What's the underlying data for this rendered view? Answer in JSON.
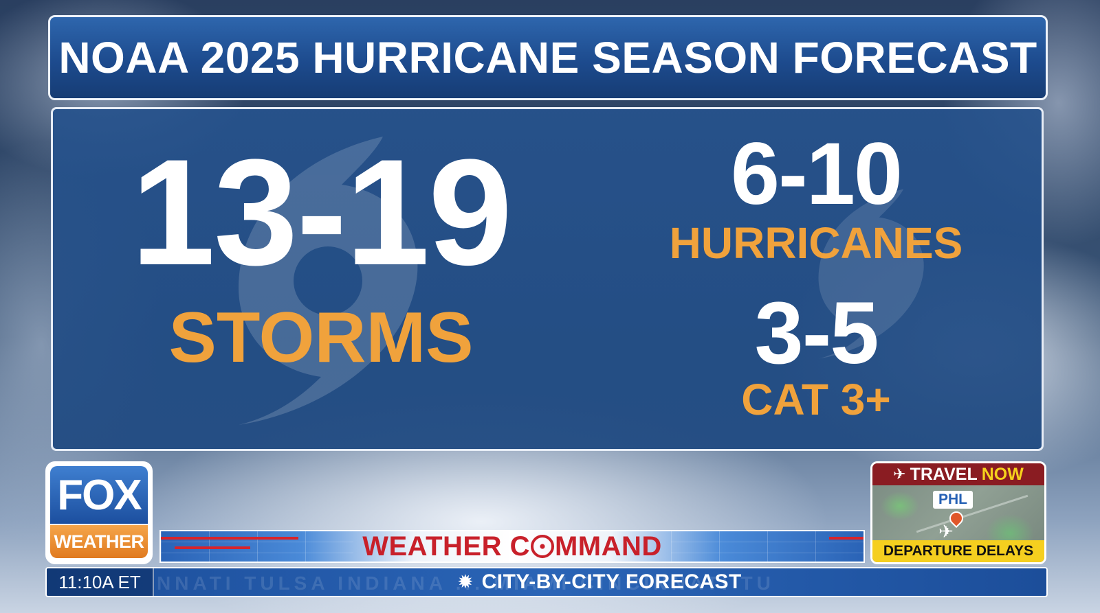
{
  "title": "NOAA 2025 HURRICANE SEASON FORECAST",
  "forecast": {
    "storms": {
      "value": "13-19",
      "label": "STORMS"
    },
    "hurricanes": {
      "value": "6-10",
      "label": "HURRICANES"
    },
    "major": {
      "value": "3-5",
      "label": "CAT 3+"
    }
  },
  "colors": {
    "panel_blue": "#244f8a",
    "label_orange": "#f0a23c",
    "brand_red": "#c8202a",
    "travel_yellow": "#f5cf1f"
  },
  "logo": {
    "top": "FOX",
    "bottom": "WEATHER"
  },
  "weather_command": {
    "before": "WEATHER C",
    "after": "MMAND"
  },
  "ticker": {
    "time": "11:10A ET",
    "text": "CITY-BY-CITY FORECAST",
    "icon": "sun-icon",
    "ghost": "NNATI  TULSA  INDIANA  ...  MIAMI  CINCINNATI  TU"
  },
  "travel": {
    "head_a": "TRAVEL",
    "head_b": "NOW",
    "airport": "PHL",
    "footer": "DEPARTURE DELAYS",
    "icon": "plane-icon"
  }
}
